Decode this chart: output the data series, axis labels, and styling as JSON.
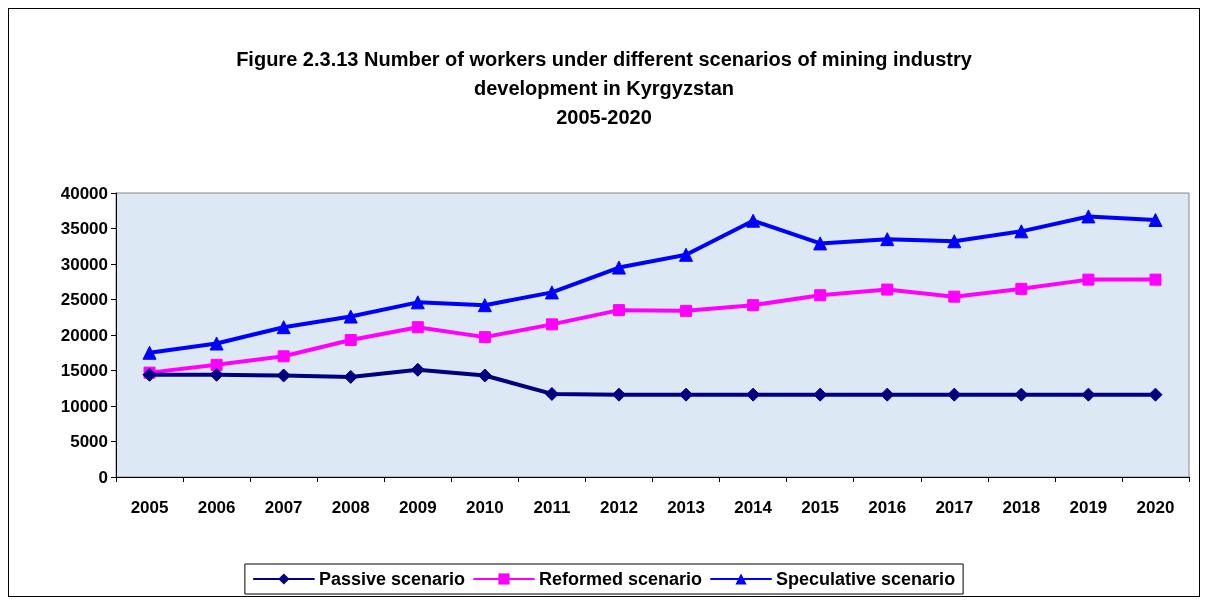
{
  "chart_data": {
    "type": "line",
    "title": "Figure 2.3.13 Number of workers under different scenarios of mining industry\ndevelopment in Kyrgyzstan\n2005-2020",
    "categories": [
      "2005",
      "2006",
      "2007",
      "2008",
      "2009",
      "2010",
      "2011",
      "2012",
      "2013",
      "2014",
      "2015",
      "2016",
      "2017",
      "2018",
      "2019",
      "2020"
    ],
    "series": [
      {
        "name": "Passive scenario",
        "color": "#000080",
        "marker": "diamond",
        "values": [
          14400,
          14400,
          14300,
          14100,
          15100,
          14300,
          11700,
          11600,
          11600,
          11600,
          11600,
          11600,
          11600,
          11600,
          11600,
          11600
        ]
      },
      {
        "name": "Reformed scenario",
        "color": "#ff00ff",
        "marker": "square",
        "values": [
          14700,
          15800,
          17000,
          19300,
          21100,
          19700,
          21500,
          23500,
          23400,
          24200,
          25600,
          26400,
          25400,
          26500,
          27800,
          27800
        ]
      },
      {
        "name": "Speculative scenario",
        "color": "#0000ff",
        "marker": "triangle",
        "values": [
          17500,
          18800,
          21100,
          22600,
          24600,
          24200,
          26000,
          29500,
          31300,
          36100,
          32900,
          33500,
          33200,
          34600,
          36700,
          36200
        ]
      }
    ],
    "ylim": [
      0,
      40000
    ],
    "yticks": [
      0,
      5000,
      10000,
      15000,
      20000,
      25000,
      30000,
      35000,
      40000
    ],
    "grid": false,
    "legend": "bottom"
  }
}
